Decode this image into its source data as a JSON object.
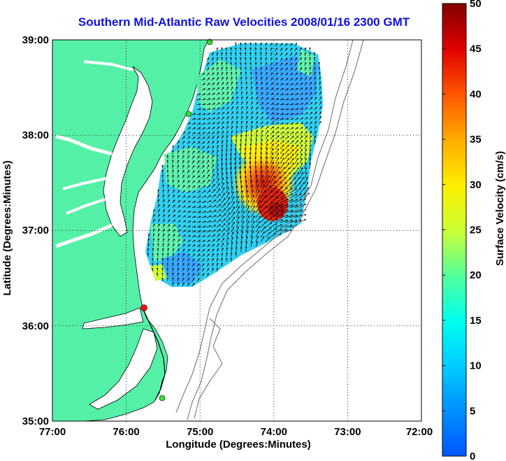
{
  "title": "Southern Mid-Atlantic Raw Velocities 2008/01/16 2300 GMT",
  "xlabel": "Longitude (Degrees:Minutes)",
  "ylabel": "Latitude (Degrees:Minutes)",
  "x_ticks": [
    "77:00",
    "76:00",
    "75:00",
    "74:00",
    "73:00",
    "72:00"
  ],
  "y_ticks": [
    "39:00",
    "38:00",
    "37:00",
    "36:00",
    "35:00"
  ],
  "colorbar": {
    "label": "Surface Velocity (cm/s)",
    "ticks": [
      "50",
      "45",
      "40",
      "35",
      "30",
      "25",
      "20",
      "15",
      "10",
      "5",
      "0"
    ],
    "min": 0,
    "max": 50
  },
  "colors": {
    "land": "#55f0a8",
    "title": "#1010e0",
    "bathymetry": "#8a8a8a",
    "station_marker": "#33dd33",
    "station_marker_highlight": "#ee1111"
  },
  "map": {
    "lon_range": [
      -77,
      -72
    ],
    "lat_range": [
      35,
      39
    ],
    "grid": "dotted"
  }
}
